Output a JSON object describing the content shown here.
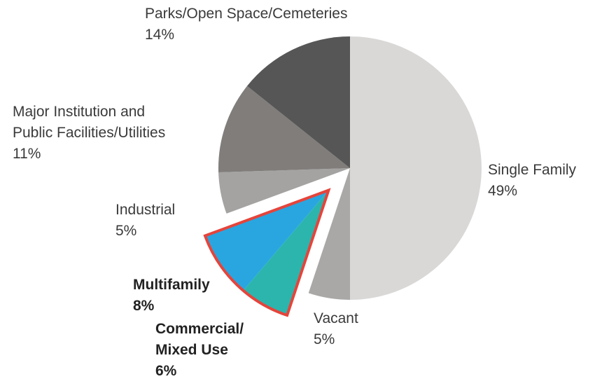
{
  "chart_data": {
    "type": "pie",
    "categories": [
      "Single Family",
      "Vacant",
      "Commercial/\nMixed Use",
      "Multifamily",
      "Industrial",
      "Major Institution and\nPublic Facilities/Utilities",
      "Parks/Open Space/Cemeteries"
    ],
    "values": [
      49,
      5,
      6,
      8,
      5,
      11,
      14
    ],
    "value_labels": [
      "49%",
      "5%",
      "6%",
      "8%",
      "5%",
      "11%",
      "14%"
    ],
    "colors": [
      "#d9d8d7",
      "#a9a8a7",
      "#2bb5ad",
      "#29a6e0",
      "#a4a3a2",
      "#807d7b",
      "#575656"
    ],
    "explode": [
      false,
      false,
      true,
      true,
      false,
      false,
      false
    ],
    "highlight_color": "#e5443b"
  }
}
